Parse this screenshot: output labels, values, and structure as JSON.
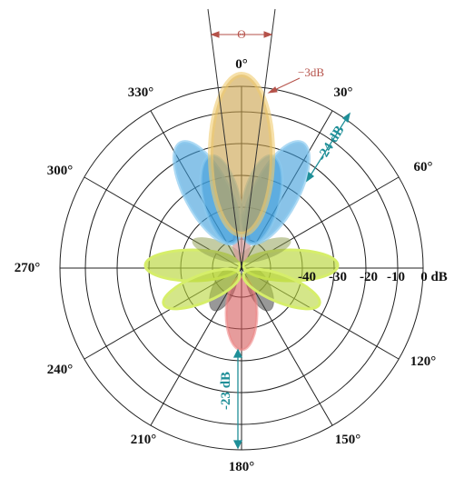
{
  "angle_labels": [
    "0°",
    "30°",
    "60°",
    "120°",
    "150°",
    "180°",
    "210°",
    "240°",
    "270°",
    "300°",
    "330°"
  ],
  "db_labels": [
    "-40",
    "-30",
    "-20",
    "-10",
    "0 dB"
  ],
  "annotations": {
    "theta": "Θ",
    "minus3": "−3dB",
    "minus24": "-24 dB",
    "minus23": "-23 dB"
  },
  "colors": {
    "main_lobe": "#d9a84c",
    "side_lobes": "#3a9bd9",
    "horizontal_lobes": "#b8d63a",
    "back_lobe": "#d65a5a",
    "rear_lobes": "#444444",
    "teal_annotation": "#1f8f98",
    "red_annotation": "#b5524a"
  }
}
